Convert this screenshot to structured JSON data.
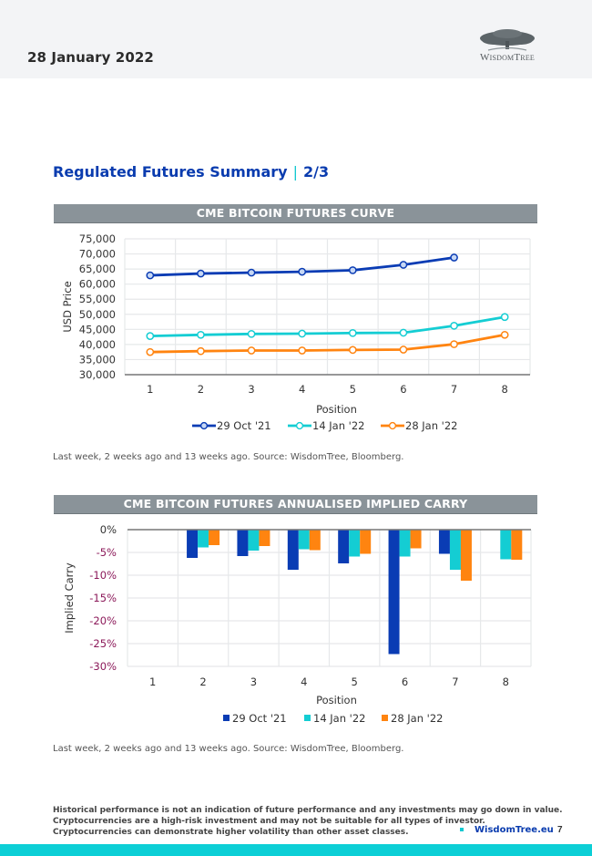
{
  "header": {
    "date": "28 January 2022",
    "logo_text": "WisdomTree"
  },
  "section": {
    "title": "Regulated Futures Summary",
    "separator": "|",
    "page_of": "2/3"
  },
  "colors": {
    "series_oct": "#0a3cb4",
    "series_jan14": "#14cdd3",
    "series_jan28": "#ff8410",
    "banner": "#8a9399",
    "accent": "#0dcfd6",
    "negative_tick": "#8c1a5a"
  },
  "chart_data": [
    {
      "type": "line",
      "title": "CME BITCOIN FUTURES CURVE",
      "xlabel": "Position",
      "ylabel": "USD Price",
      "x": [
        1,
        2,
        3,
        4,
        5,
        6,
        7,
        8
      ],
      "x_tick_labels": [
        "1",
        "2",
        "3",
        "4",
        "5",
        "6",
        "7",
        "8"
      ],
      "ylim": [
        30000,
        75000
      ],
      "y_ticks": [
        30000,
        35000,
        40000,
        45000,
        50000,
        55000,
        60000,
        65000,
        70000,
        75000
      ],
      "y_tick_labels": [
        "30,000",
        "35,000",
        "40,000",
        "45,000",
        "50,000",
        "55,000",
        "60,000",
        "65,000",
        "70,000",
        "75,000"
      ],
      "grid": true,
      "legend_position": "bottom",
      "series": [
        {
          "name": "29 Oct '21",
          "values": [
            62900,
            63500,
            63800,
            64100,
            64600,
            66400,
            68800,
            null
          ]
        },
        {
          "name": "14 Jan '22",
          "values": [
            42800,
            43200,
            43500,
            43600,
            43800,
            43900,
            46200,
            49100
          ]
        },
        {
          "name": "28 Jan '22",
          "values": [
            37500,
            37800,
            38000,
            38000,
            38200,
            38300,
            40100,
            43200
          ]
        }
      ],
      "source_note": "Last week, 2 weeks ago and 13 weeks ago. Source: WisdomTree, Bloomberg."
    },
    {
      "type": "bar",
      "title": "CME BITCOIN FUTURES ANNUALISED IMPLIED CARRY",
      "xlabel": "Position",
      "ylabel": "Implied Carry",
      "categories": [
        "1",
        "2",
        "3",
        "4",
        "5",
        "6",
        "7",
        "8"
      ],
      "ylim": [
        -30,
        0
      ],
      "y_ticks": [
        0,
        -5,
        -10,
        -15,
        -20,
        -25,
        -30
      ],
      "y_tick_labels": [
        "0%",
        "-5%",
        "-10%",
        "-15%",
        "-20%",
        "-25%",
        "-30%"
      ],
      "unit": "%",
      "grid": true,
      "legend_position": "bottom",
      "series": [
        {
          "name": "29 Oct '21",
          "values": [
            null,
            -6.2,
            -5.8,
            -8.8,
            -7.4,
            -27.3,
            -5.3,
            null
          ]
        },
        {
          "name": "14 Jan '22",
          "values": [
            null,
            -3.9,
            -4.6,
            -4.3,
            -5.9,
            -5.9,
            -8.8,
            -6.5
          ]
        },
        {
          "name": "28 Jan '22",
          "values": [
            null,
            -3.4,
            -3.6,
            -4.5,
            -5.3,
            -4.1,
            -11.2,
            -6.6
          ]
        }
      ],
      "source_note": "Last week, 2 weeks ago and 13 weeks ago. Source: WisdomTree, Bloomberg."
    }
  ],
  "footer": {
    "disclaimer_lines": [
      "Historical performance is not an indication of future performance and any investments may go down in value.",
      "Cryptocurrencies are a high-risk investment and may not be suitable for all types of investor.",
      "Cryptocurrencies can demonstrate higher volatility than other asset classes."
    ],
    "link": "WisdomTree.eu",
    "page_number": "7"
  }
}
